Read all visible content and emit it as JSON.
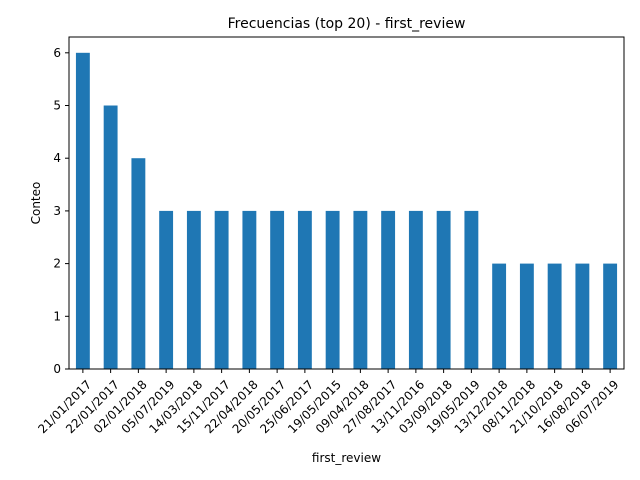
{
  "chart_data": {
    "type": "bar",
    "title": "Frecuencias (top 20) - first_review",
    "xlabel": "first_review",
    "ylabel": "Conteo",
    "categories": [
      "21/01/2017",
      "22/01/2017",
      "02/01/2018",
      "05/07/2019",
      "14/03/2018",
      "15/11/2017",
      "22/04/2018",
      "20/05/2017",
      "25/06/2017",
      "19/05/2015",
      "09/04/2018",
      "27/08/2017",
      "13/11/2016",
      "03/09/2018",
      "19/05/2019",
      "13/12/2018",
      "08/11/2018",
      "21/10/2018",
      "16/08/2018",
      "06/07/2019"
    ],
    "values": [
      6,
      5,
      4,
      3,
      3,
      3,
      3,
      3,
      3,
      3,
      3,
      3,
      3,
      3,
      3,
      2,
      2,
      2,
      2,
      2
    ],
    "ylim": [
      0,
      6.3
    ],
    "yticks": [
      0,
      1,
      2,
      3,
      4,
      5,
      6
    ],
    "grid": false,
    "bar_color": "#1f77b4"
  }
}
